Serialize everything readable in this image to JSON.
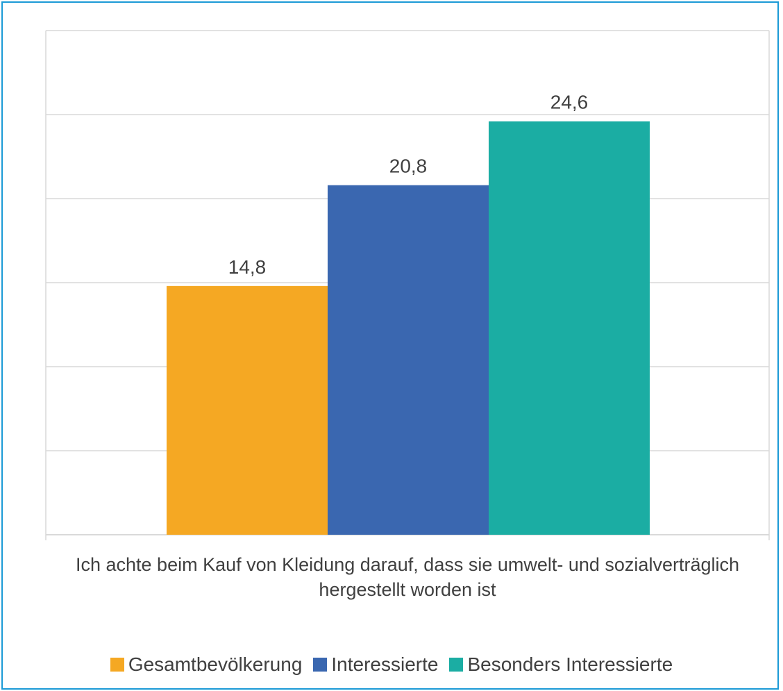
{
  "chart_data": {
    "type": "bar",
    "categories": [
      "Ich achte beim Kauf von Kleidung darauf, dass sie umwelt- und sozialverträglich hergestellt worden ist"
    ],
    "series": [
      {
        "name": "Gesamtbevölkerung",
        "values": [
          14.8
        ],
        "label": "14,8",
        "color": "#f5a823"
      },
      {
        "name": "Interessierte",
        "values": [
          20.8
        ],
        "label": "20,8",
        "color": "#3a67b0"
      },
      {
        "name": "Besonders Interessierte",
        "values": [
          24.6
        ],
        "label": "24,6",
        "color": "#1bada3"
      }
    ],
    "ylim": [
      0,
      30
    ],
    "grid": true,
    "legend_position": "bottom",
    "category_label": "Ich achte beim Kauf von Kleidung darauf, dass sie umwelt- und sozialverträglich hergestellt worden ist"
  },
  "frame_color": "#1b9ad6",
  "grid_color": "#d9d9d9"
}
